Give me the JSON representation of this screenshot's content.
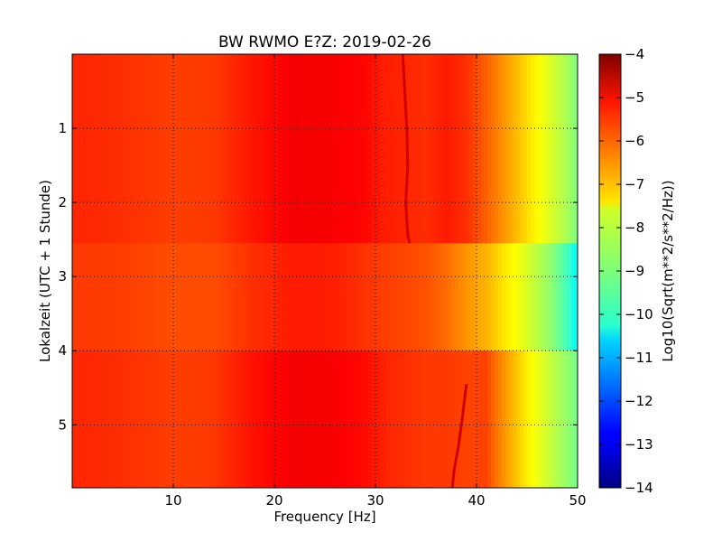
{
  "chart_data": {
    "type": "heatmap",
    "title": "BW RWMO E?Z: 2019-02-26",
    "xlabel": "Frequency [Hz]",
    "ylabel": "Lokalzeit (UTC + 1 Stunde)",
    "xlim": [
      0,
      50
    ],
    "ylim": [
      5.85,
      0
    ],
    "x_ticks": [
      10,
      20,
      30,
      40,
      50
    ],
    "y_ticks": [
      1,
      2,
      3,
      4,
      5
    ],
    "grid": true,
    "colormap": "jet",
    "colorbar": {
      "label": "Log10(Sqrt(m**2/s**2/Hz))",
      "vmin": -14,
      "vmax": -4,
      "ticks": [
        -4,
        -5,
        -6,
        -7,
        -8,
        -9,
        -10,
        -11,
        -12,
        -13,
        -14
      ]
    },
    "time_segments": [
      {
        "t_start": 0.0,
        "t_end": 2.55
      },
      {
        "t_start": 2.55,
        "t_end": 4.0
      },
      {
        "t_start": 4.0,
        "t_end": 5.85
      }
    ],
    "spectrum_profiles": [
      {
        "segment": 0,
        "freq_hz": [
          0,
          5,
          10,
          14,
          18,
          22,
          26,
          29,
          31,
          33,
          35,
          37,
          39,
          41,
          42,
          43,
          44,
          45,
          46,
          47,
          48,
          49,
          50
        ],
        "log10_psd": [
          -5.6,
          -5.7,
          -5.85,
          -5.8,
          -5.45,
          -5.15,
          -5.2,
          -5.3,
          -5.55,
          -5.6,
          -5.7,
          -5.5,
          -5.7,
          -6.2,
          -6.5,
          -6.8,
          -7.1,
          -7.4,
          -7.7,
          -8.0,
          -8.3,
          -8.6,
          -9.0
        ]
      },
      {
        "segment": 1,
        "freq_hz": [
          0,
          5,
          10,
          14,
          18,
          22,
          26,
          29,
          31,
          33,
          35,
          37,
          39,
          41,
          42,
          43,
          44,
          45,
          46,
          47,
          48,
          49,
          50
        ],
        "log10_psd": [
          -5.8,
          -5.85,
          -6.0,
          -6.0,
          -5.7,
          -5.5,
          -5.55,
          -5.75,
          -5.85,
          -5.95,
          -6.05,
          -6.3,
          -6.7,
          -7.0,
          -7.3,
          -7.6,
          -7.8,
          -8.1,
          -8.4,
          -8.7,
          -9.1,
          -9.6,
          -10.3
        ]
      },
      {
        "segment": 2,
        "freq_hz": [
          0,
          5,
          10,
          14,
          18,
          22,
          26,
          29,
          31,
          33,
          35,
          37,
          39,
          41,
          42,
          43,
          44,
          45,
          46,
          47,
          48,
          49,
          50
        ],
        "log10_psd": [
          -5.6,
          -5.7,
          -5.85,
          -5.8,
          -5.4,
          -5.15,
          -5.2,
          -5.35,
          -5.6,
          -5.7,
          -5.8,
          -5.8,
          -5.9,
          -5.9,
          -6.4,
          -6.8,
          -7.2,
          -7.6,
          -7.9,
          -8.2,
          -8.5,
          -8.8,
          -9.1
        ]
      }
    ],
    "traces": [
      {
        "points": [
          [
            32.7,
            0.0
          ],
          [
            32.9,
            0.5
          ],
          [
            33.1,
            1.0
          ],
          [
            33.2,
            1.5
          ],
          [
            33.0,
            2.0
          ],
          [
            33.2,
            2.45
          ],
          [
            33.4,
            2.55
          ]
        ],
        "log10_psd": -4.8
      },
      {
        "points": [
          [
            39.0,
            4.45
          ],
          [
            38.6,
            4.9
          ],
          [
            38.2,
            5.3
          ],
          [
            37.8,
            5.6
          ],
          [
            37.6,
            5.85
          ]
        ],
        "log10_psd": -4.8
      }
    ]
  }
}
